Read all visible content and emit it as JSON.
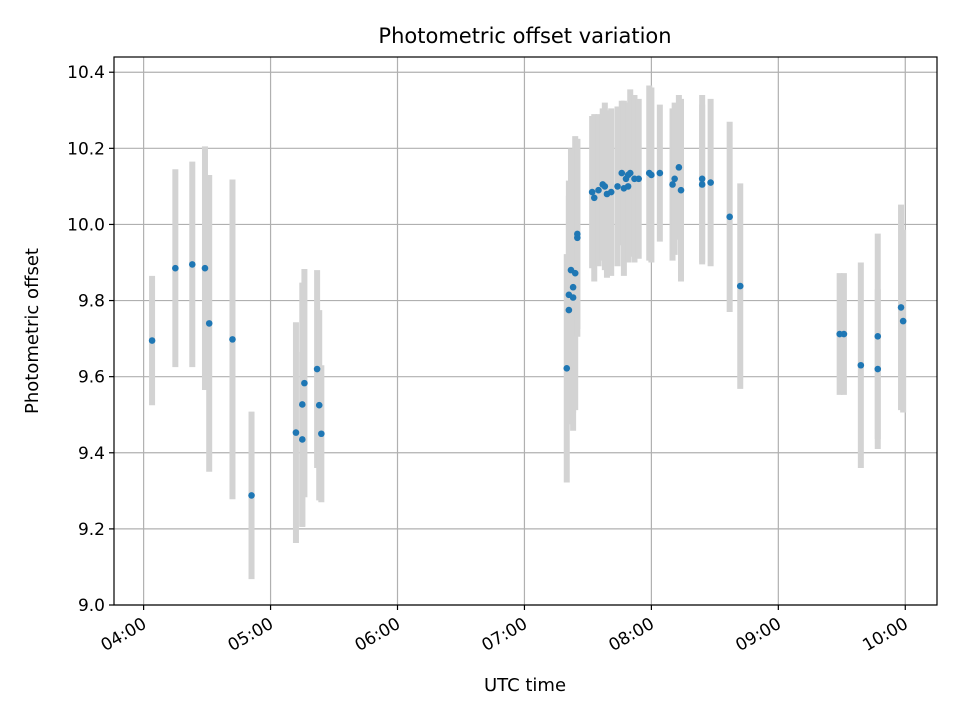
{
  "chart_data": {
    "type": "scatter",
    "title": "Photometric offset variation",
    "xlabel": "UTC time",
    "ylabel": "Photometric offset",
    "xlim": [
      "03:46",
      "10:15"
    ],
    "ylim": [
      9.0,
      10.44
    ],
    "x_ticks": [
      "04:00",
      "05:00",
      "06:00",
      "07:00",
      "08:00",
      "09:00",
      "10:00"
    ],
    "y_ticks": [
      "9.0",
      "9.2",
      "9.4",
      "9.6",
      "9.8",
      "10.0",
      "10.2",
      "10.4"
    ],
    "grid": true,
    "colors": {
      "points": "#1f77b4",
      "error_bars": "#d3d3d3",
      "grid": "#b0b0b0"
    },
    "series": [
      {
        "x": [
          "04:04",
          "04:15",
          "04:23",
          "04:29",
          "04:31",
          "04:42",
          "04:51",
          "05:12",
          "05:15",
          "05:15",
          "05:16",
          "05:22",
          "05:23",
          "05:24",
          "07:20",
          "07:21",
          "07:21",
          "07:22",
          "07:23",
          "07:23",
          "07:24",
          "07:25",
          "07:25",
          "07:32",
          "07:33",
          "07:35",
          "07:37",
          "07:38",
          "07:39",
          "07:41",
          "07:44",
          "07:46",
          "07:47",
          "07:48",
          "07:49",
          "07:49",
          "07:50",
          "07:52",
          "07:54",
          "07:59",
          "08:00",
          "08:04",
          "08:10",
          "08:11",
          "08:13",
          "08:14",
          "08:24",
          "08:24",
          "08:28",
          "08:37",
          "08:42",
          "09:29",
          "09:31",
          "09:39",
          "09:47",
          "09:47",
          "09:58",
          "09:59"
        ],
        "y": [
          9.695,
          9.885,
          9.895,
          9.885,
          9.74,
          9.698,
          9.288,
          9.453,
          9.435,
          9.527,
          9.583,
          9.62,
          9.525,
          9.45,
          9.622,
          9.775,
          9.815,
          9.88,
          9.835,
          9.808,
          9.872,
          9.965,
          9.975,
          10.085,
          10.07,
          10.09,
          10.105,
          10.1,
          10.08,
          10.085,
          10.1,
          10.135,
          10.095,
          10.12,
          10.13,
          10.1,
          10.135,
          10.12,
          10.12,
          10.135,
          10.13,
          10.135,
          10.105,
          10.12,
          10.15,
          10.09,
          10.12,
          10.105,
          10.11,
          10.02,
          9.838,
          9.712,
          9.712,
          9.63,
          9.62,
          9.706,
          9.782,
          9.746
        ],
        "error": [
          0.17,
          0.26,
          0.27,
          0.32,
          0.39,
          0.42,
          0.22,
          0.29,
          0.23,
          0.32,
          0.3,
          0.26,
          0.25,
          0.18,
          0.3,
          0.3,
          0.3,
          0.32,
          0.33,
          0.35,
          0.36,
          0.26,
          0.25,
          0.2,
          0.22,
          0.2,
          0.2,
          0.22,
          0.22,
          0.22,
          0.21,
          0.19,
          0.23,
          0.2,
          0.19,
          0.2,
          0.22,
          0.22,
          0.21,
          0.23,
          0.23,
          0.18,
          0.2,
          0.2,
          0.19,
          0.24,
          0.22,
          0.21,
          0.22,
          0.25,
          0.27,
          0.16,
          0.16,
          0.27,
          0.21,
          0.27,
          0.27,
          0.24
        ]
      }
    ]
  }
}
